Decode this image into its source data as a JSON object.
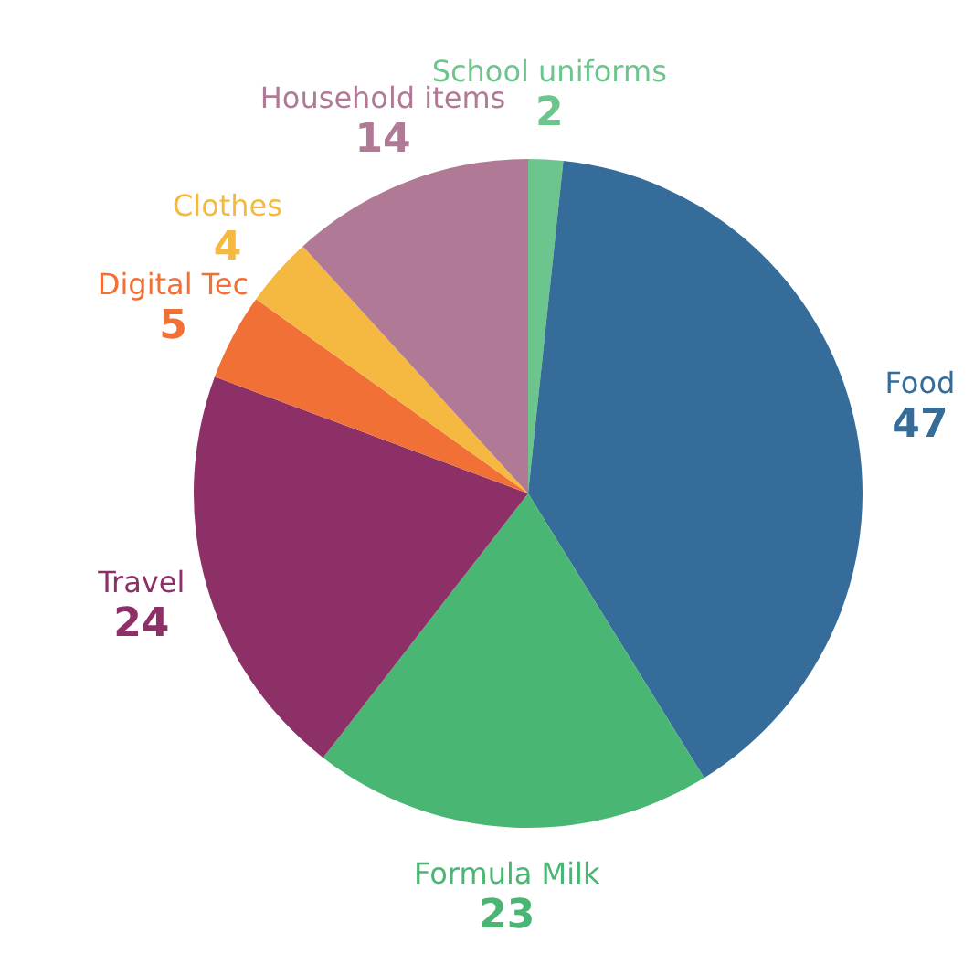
{
  "chart_data": {
    "type": "pie",
    "categories": [
      "School uniforms",
      "Food",
      "Formula Milk",
      "Travel",
      "Digital Tec",
      "Clothes",
      "Household items"
    ],
    "values": [
      2,
      47,
      23,
      24,
      5,
      4,
      14
    ],
    "colors": [
      "#6cc58c",
      "#356c99",
      "#4ab673",
      "#8e3068",
      "#f07036",
      "#f5b942",
      "#b07a96"
    ],
    "data_labels": true
  }
}
